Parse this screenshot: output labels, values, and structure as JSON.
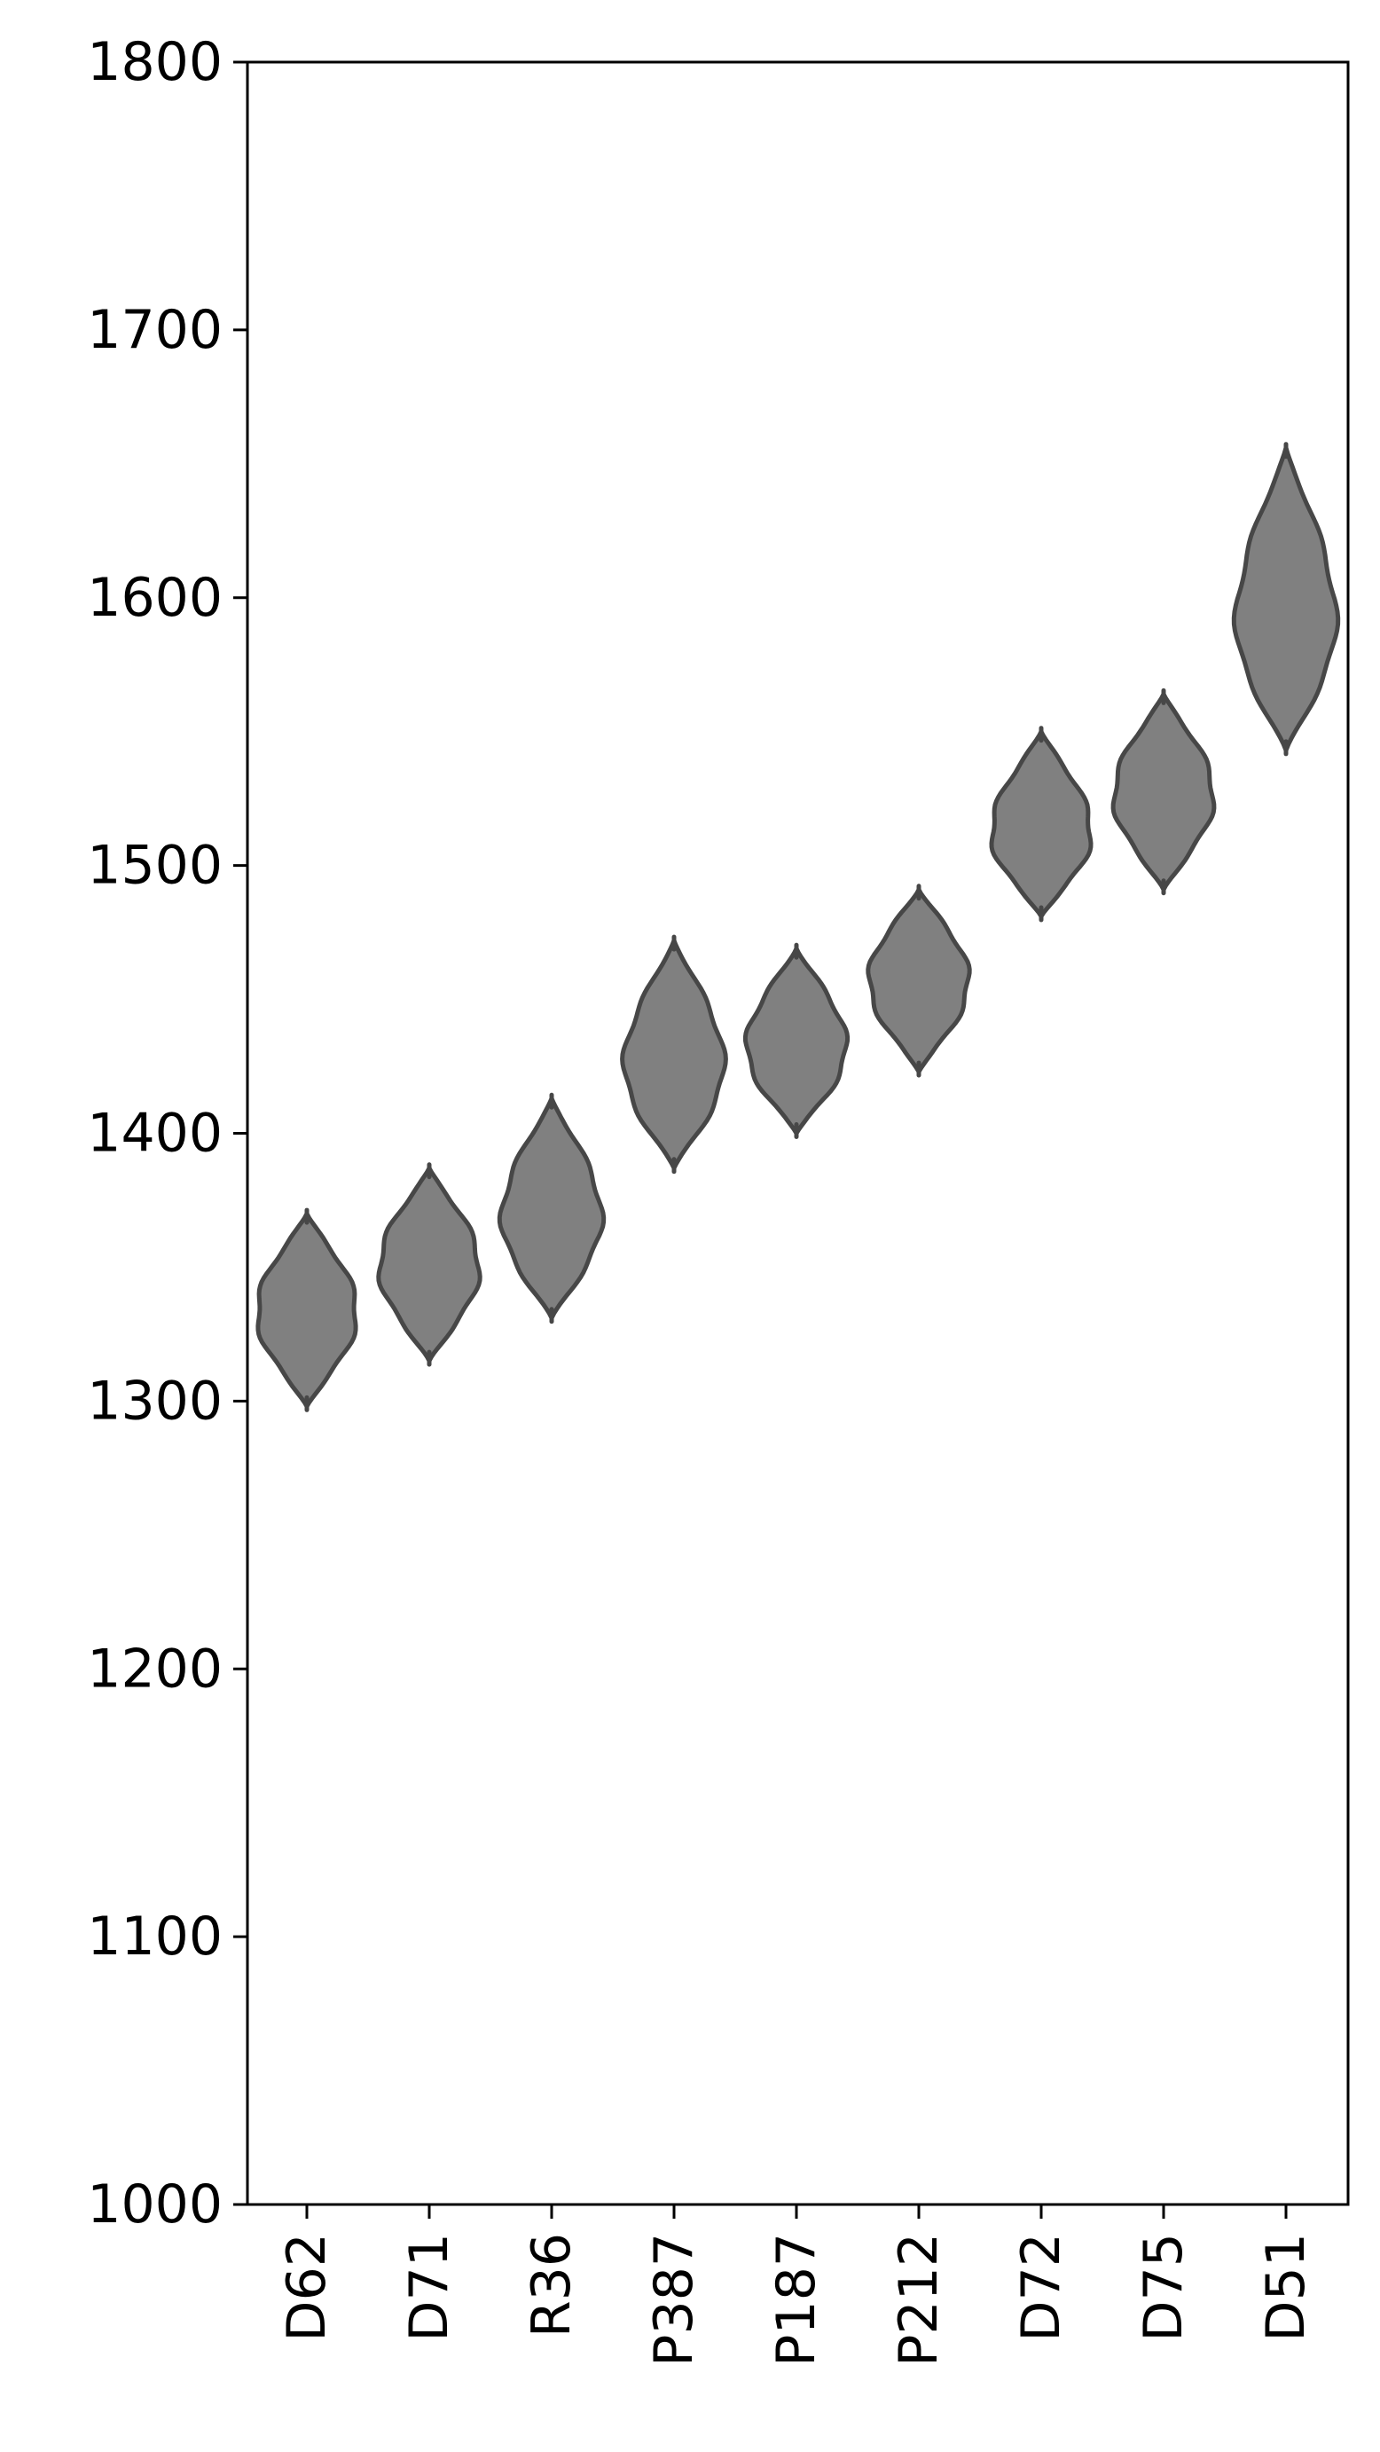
{
  "chart_data": {
    "type": "violin",
    "title": "",
    "xlabel": "",
    "ylabel": "",
    "ylim": [
      1000,
      1800
    ],
    "yticks": [
      1000,
      1100,
      1200,
      1300,
      1400,
      1500,
      1600,
      1700,
      1800
    ],
    "grid": false,
    "categories": [
      "D62",
      "D71",
      "R36",
      "P387",
      "P187",
      "P212",
      "D72",
      "D75",
      "D51"
    ],
    "distributions": [
      {
        "category": "D62",
        "min": 1298,
        "max": 1370,
        "center": 1333
      },
      {
        "category": "D71",
        "min": 1315,
        "max": 1387,
        "center": 1350
      },
      {
        "category": "R36",
        "min": 1331,
        "max": 1413,
        "center": 1368
      },
      {
        "category": "P387",
        "min": 1387,
        "max": 1472,
        "center": 1425
      },
      {
        "category": "P187",
        "min": 1400,
        "max": 1469,
        "center": 1432
      },
      {
        "category": "P212",
        "min": 1423,
        "max": 1491,
        "center": 1457
      },
      {
        "category": "D72",
        "min": 1481,
        "max": 1550,
        "center": 1512
      },
      {
        "category": "D75",
        "min": 1491,
        "max": 1564,
        "center": 1526
      },
      {
        "category": "D51",
        "min": 1543,
        "max": 1656,
        "center": 1590
      }
    ],
    "colors": {
      "fill": "#808080",
      "edge": "#474747",
      "axis": "#000000"
    }
  }
}
